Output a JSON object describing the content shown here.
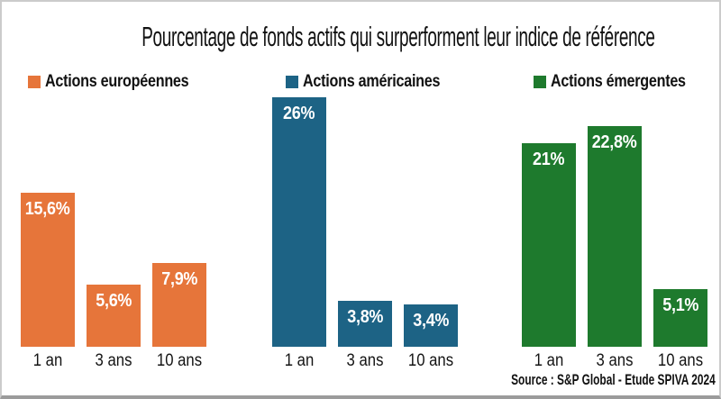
{
  "title": "Pourcentage de fonds actifs qui surperforment leur indice de référence",
  "source": "Source : S&P Global - Etude SPIVA 2024",
  "chart_data": {
    "type": "bar",
    "categories": [
      "1 an",
      "3 ans",
      "10 ans"
    ],
    "series": [
      {
        "name": "Actions européennes",
        "color": "#e6753a",
        "values": [
          15.6,
          5.6,
          7.9
        ],
        "labels": [
          "15,6%",
          "5,6%",
          "7,9%"
        ]
      },
      {
        "name": "Actions américaines",
        "color": "#1d6385",
        "values": [
          26,
          3.8,
          3.4
        ],
        "labels": [
          "26%",
          "3,8%",
          "3,4%"
        ]
      },
      {
        "name": "Actions émergentes",
        "color": "#1e7a2d",
        "values": [
          21,
          22.8,
          5.1
        ],
        "labels": [
          "21%",
          "22,8%",
          "5,1%"
        ]
      }
    ],
    "unit": "%",
    "xlabel": "",
    "ylabel": "",
    "grid": false,
    "legend_position": "top",
    "value_labels": "inside-top",
    "ylim": [
      0,
      30
    ]
  }
}
